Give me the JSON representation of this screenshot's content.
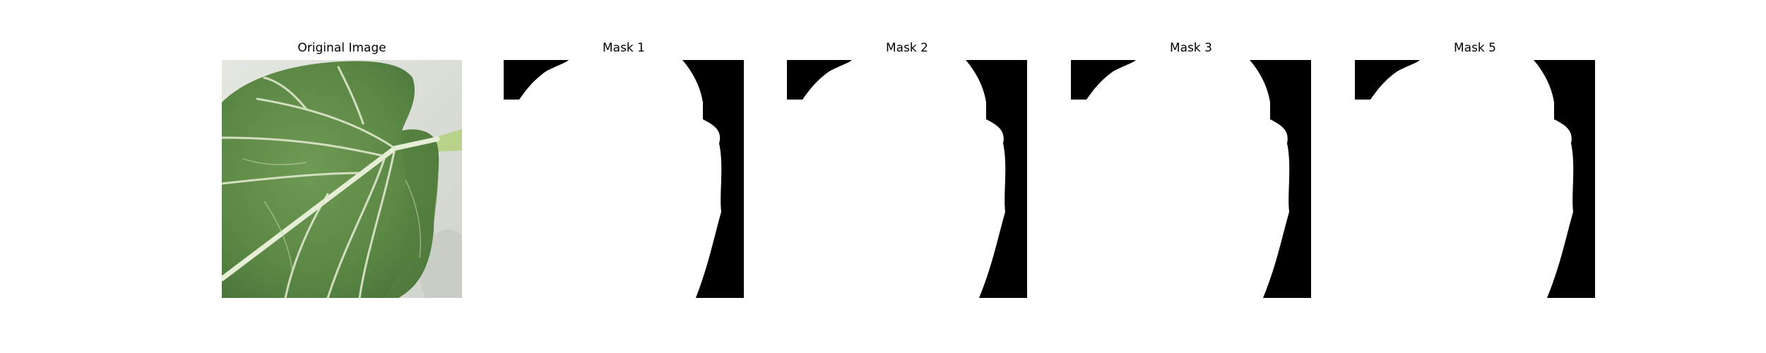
{
  "figure": {
    "panels": [
      {
        "id": "original",
        "title": "Original Image",
        "kind": "photo"
      },
      {
        "id": "mask1",
        "title": "Mask 1",
        "kind": "mask"
      },
      {
        "id": "mask2",
        "title": "Mask 2",
        "kind": "mask"
      },
      {
        "id": "mask3",
        "title": "Mask 3",
        "kind": "mask"
      },
      {
        "id": "mask5",
        "title": "Mask 5",
        "kind": "mask"
      }
    ]
  },
  "colors": {
    "background": "#ffffff",
    "mask_foreground": "#ffffff",
    "mask_background": "#000000",
    "leaf_dark": "#4f7a3a",
    "leaf_mid": "#6a9450",
    "vein": "#e4ecd4",
    "photo_background": "#dfe3dc"
  }
}
